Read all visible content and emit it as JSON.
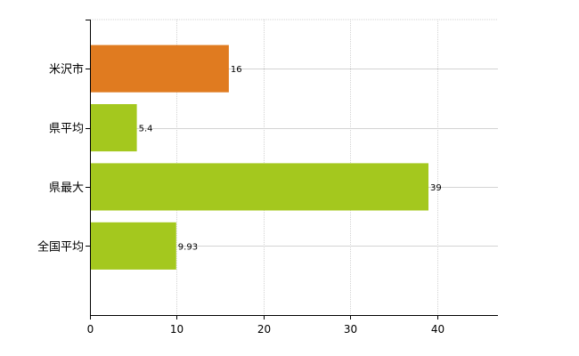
{
  "chart_data": {
    "type": "bar",
    "orientation": "horizontal",
    "categories": [
      "米沢市",
      "県平均",
      "県最大",
      "全国平均"
    ],
    "values": [
      16,
      5.4,
      39,
      9.93
    ],
    "value_labels": [
      "16",
      "5.4",
      "39",
      "9.93"
    ],
    "bar_colors": [
      "#e07b20",
      "#a4c81e",
      "#a4c81e",
      "#a4c81e"
    ],
    "xlim": [
      0,
      47
    ],
    "x_ticks": [
      0,
      10,
      20,
      30,
      40
    ],
    "x_tick_labels": [
      "0",
      "10",
      "20",
      "30",
      "40"
    ],
    "grid": true,
    "legend": "none",
    "title": "",
    "xlabel": "",
    "ylabel": ""
  }
}
